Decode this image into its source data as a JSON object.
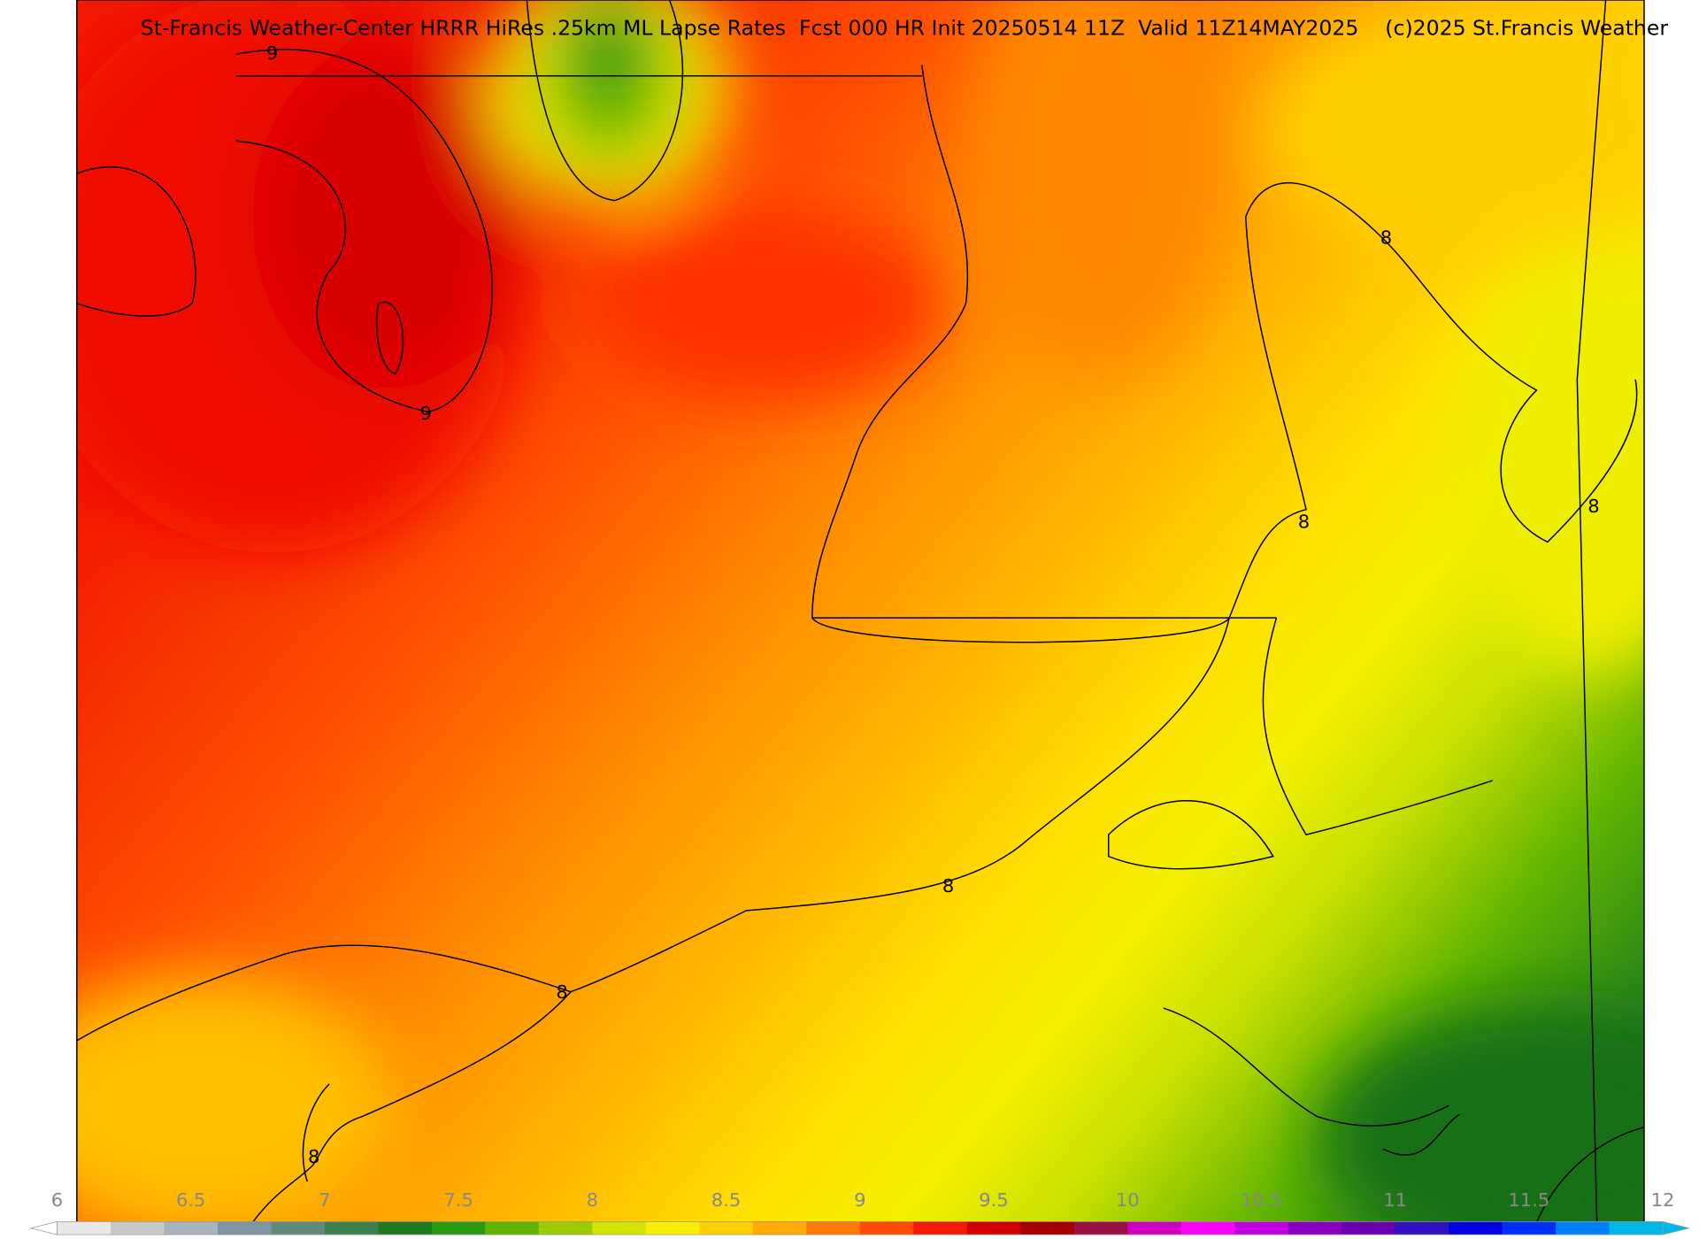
{
  "header": {
    "title": "St-Francis Weather-Center HRRR HiRes .25km ML Lapse Rates  Fcst 000 HR Init 20250514 11Z  Valid 11Z14MAY2025    (c)2025 St.Francis Weather"
  },
  "contour_labels": [
    "9",
    "9",
    "8",
    "8",
    "8",
    "8",
    "8",
    "8"
  ],
  "colorbar": {
    "ticks": [
      6,
      6.5,
      7,
      7.5,
      8,
      8.5,
      9,
      9.5,
      10,
      10.5,
      11,
      11.5,
      12
    ],
    "colors": [
      "#e8e8e8",
      "#c8c8c8",
      "#a8b4bc",
      "#7f95a3",
      "#5f8a7a",
      "#3d8050",
      "#1e7a1e",
      "#2a9a10",
      "#60b400",
      "#9ccc00",
      "#d2e400",
      "#f8f000",
      "#ffd000",
      "#ffaa00",
      "#ff7a00",
      "#ff4a00",
      "#f21a00",
      "#d20000",
      "#a80000",
      "#9a1040",
      "#d000c0",
      "#ff00ff",
      "#c000e0",
      "#8a00c0",
      "#6a00b0",
      "#3010c0",
      "#0000e0",
      "#0030ff",
      "#0080ff",
      "#00b8e8"
    ]
  }
}
